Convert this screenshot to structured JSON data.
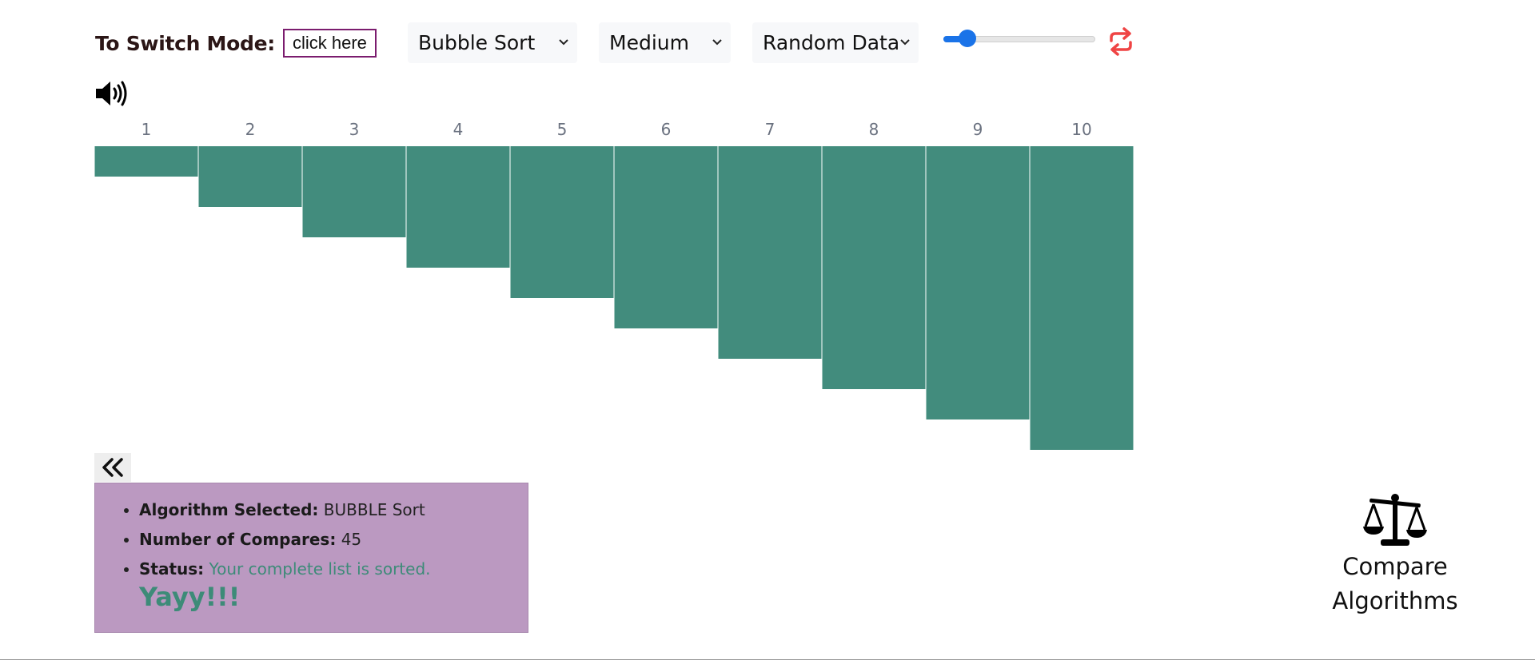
{
  "mode": {
    "label": "To Switch Mode:",
    "button_label": "click here"
  },
  "algorithm_select": {
    "value": "Bubble Sort"
  },
  "speed_select": {
    "value": "Medium"
  },
  "data_select": {
    "value": "Random Data"
  },
  "speed_slider": {
    "value_fraction": 0.16
  },
  "colors": {
    "bar": "#428c7d",
    "accent": "#1a73e8",
    "refresh": "#ef4444",
    "panel": "#bb99c1",
    "status": "#3d8b78"
  },
  "icons": {
    "sound": "volume-up-icon",
    "refresh": "refresh-icon",
    "collapse": "double-chevron-left-icon",
    "compare": "balance-scale-icon"
  },
  "chart_data": {
    "type": "bar",
    "orientation": "downward",
    "categories": [
      "1",
      "2",
      "3",
      "4",
      "5",
      "6",
      "7",
      "8",
      "9",
      "10"
    ],
    "values": [
      1,
      2,
      3,
      4,
      5,
      6,
      7,
      8,
      9,
      10
    ],
    "grid": false,
    "legend": "none"
  },
  "info": {
    "algorithm_label": "Algorithm Selected:",
    "algorithm_value": "BUBBLE Sort",
    "compares_label": "Number of Compares:",
    "compares_value": "45",
    "status_label": "Status:",
    "status_value": "Your complete list is sorted.",
    "celebration": "Yayy!!!"
  },
  "compare": {
    "line1": "Compare",
    "line2": "Algorithms"
  }
}
